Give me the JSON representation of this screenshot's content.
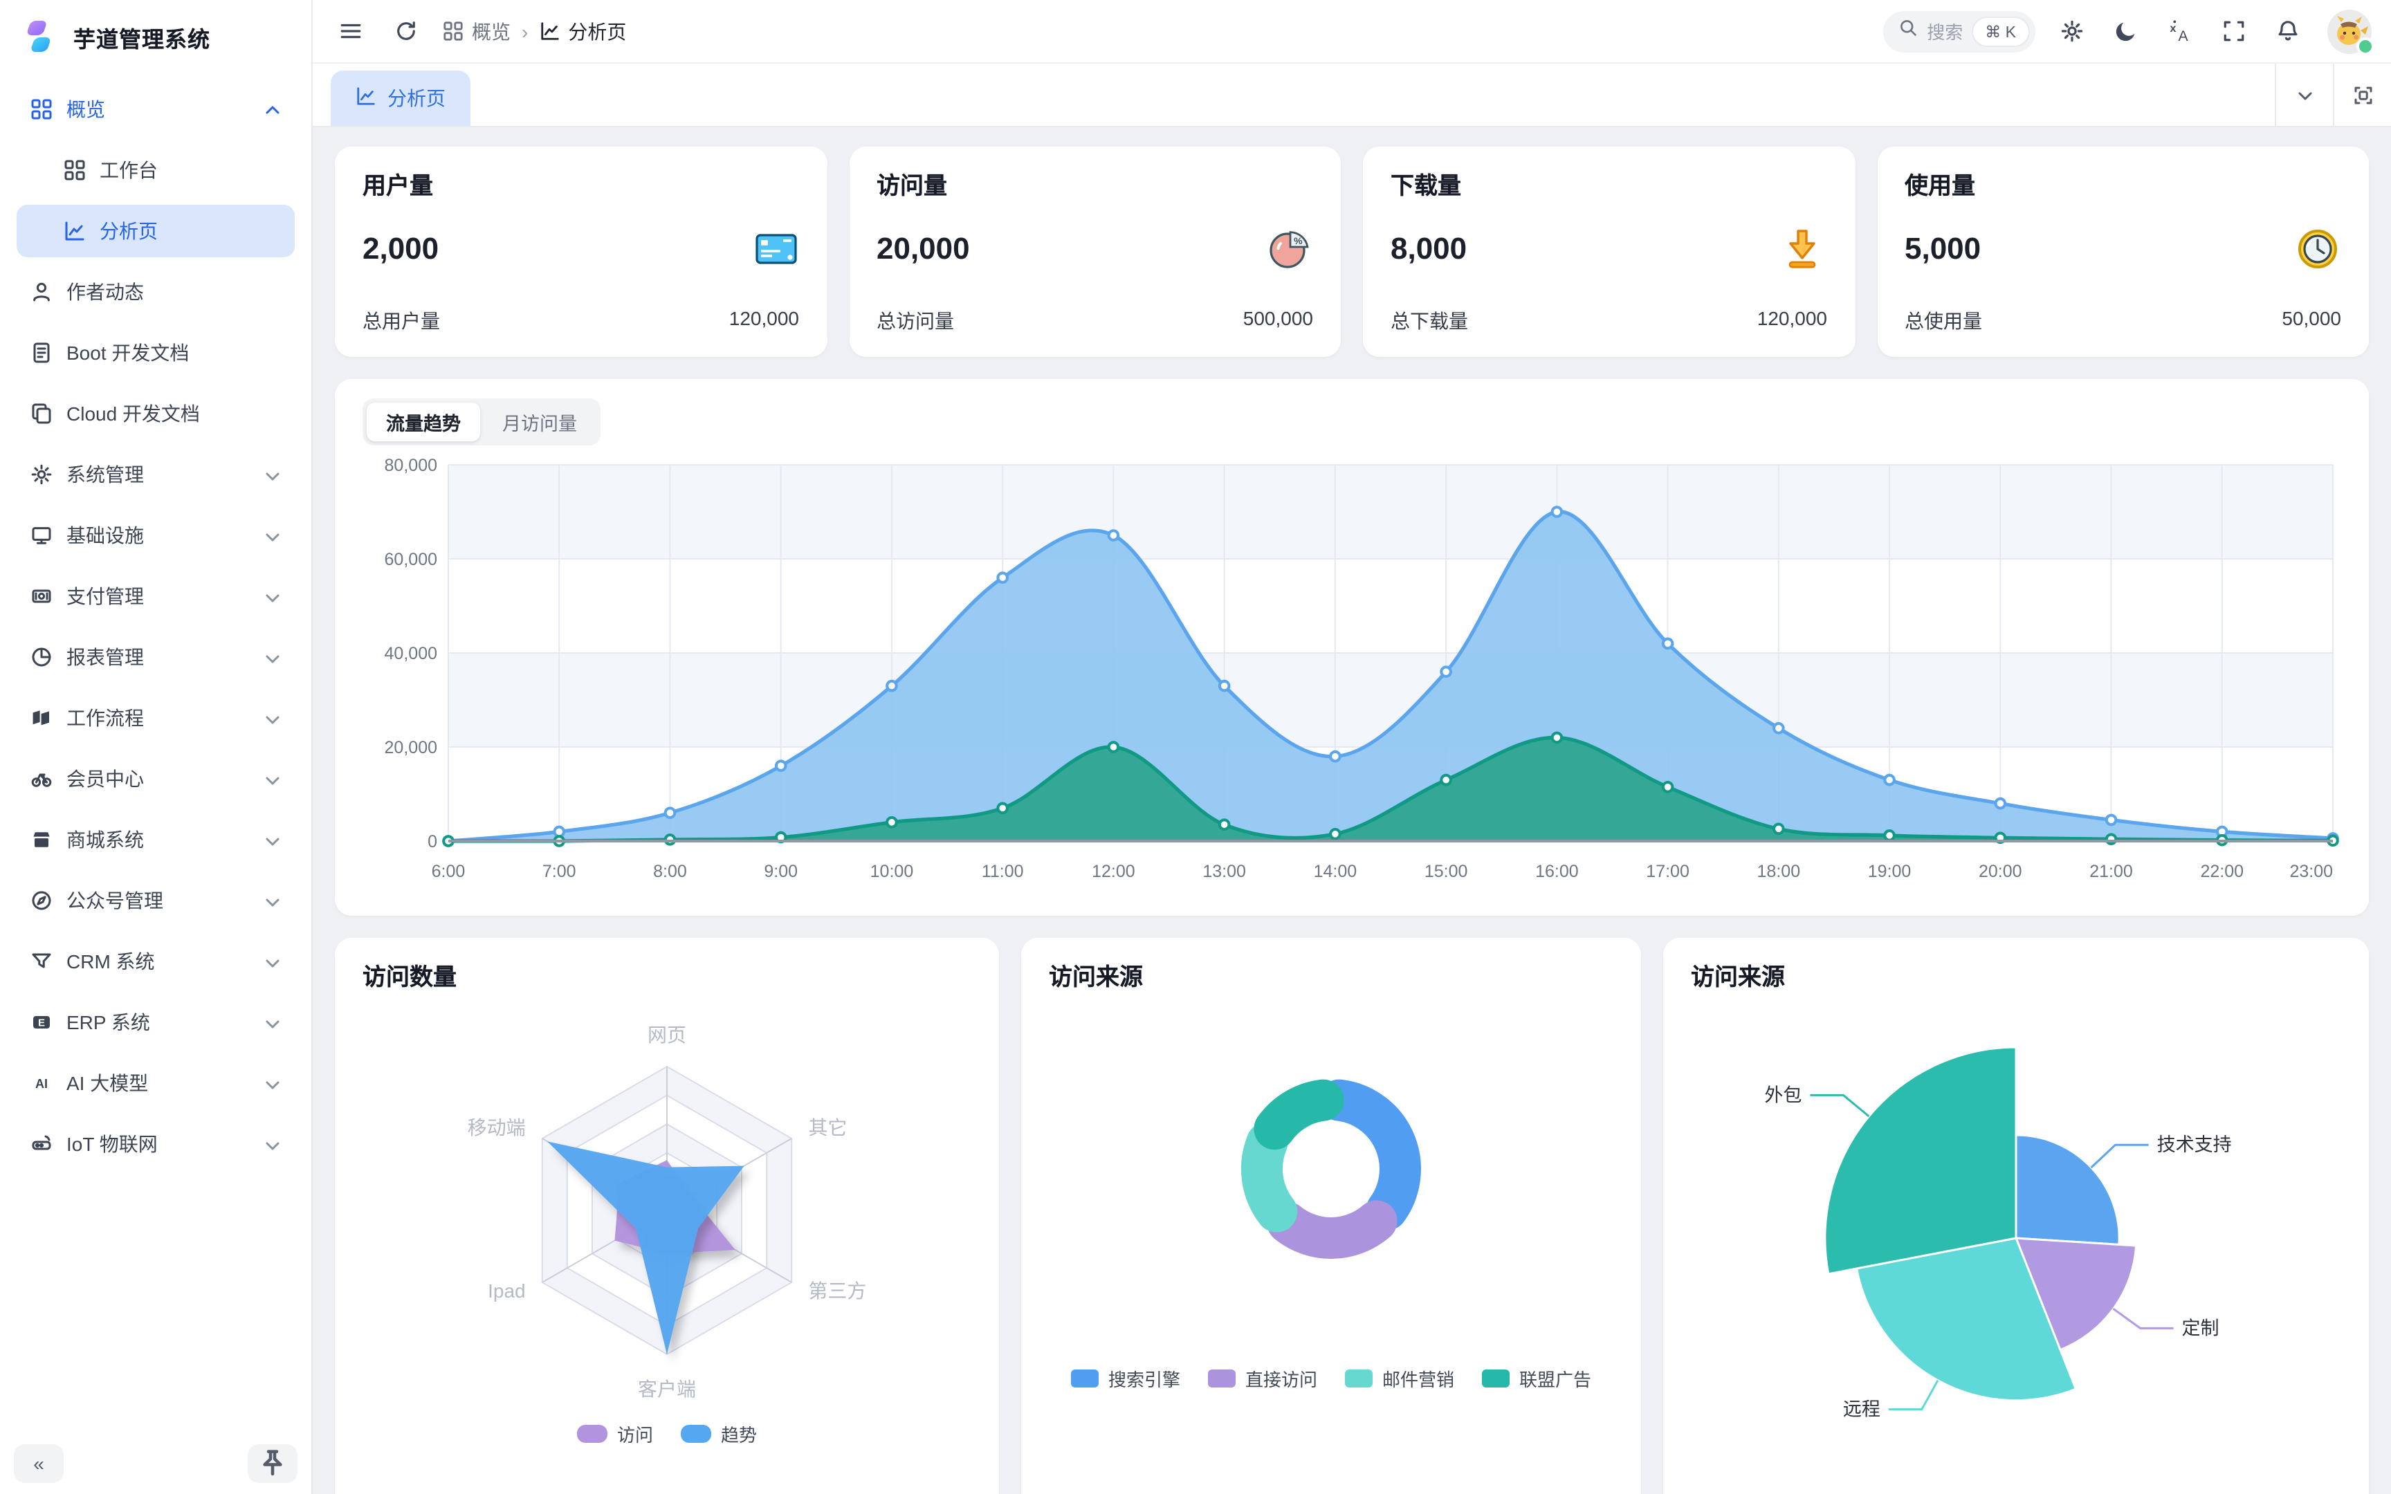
{
  "app": {
    "title": "芋道管理系统"
  },
  "sidebar": {
    "items": [
      {
        "id": "overview",
        "label": "概览",
        "icon": "grid-icon",
        "level": 0,
        "chevron": "up",
        "active_section": true
      },
      {
        "id": "workbench",
        "label": "工作台",
        "icon": "grid-icon",
        "level": 1
      },
      {
        "id": "analysis",
        "label": "分析页",
        "icon": "chart-icon",
        "level": 1,
        "selected": true
      },
      {
        "id": "author-news",
        "label": "作者动态",
        "icon": "user-icon",
        "level": 0
      },
      {
        "id": "boot-docs",
        "label": "Boot 开发文档",
        "icon": "doc-icon",
        "level": 0
      },
      {
        "id": "cloud-docs",
        "label": "Cloud 开发文档",
        "icon": "copy-icon",
        "level": 0
      },
      {
        "id": "system",
        "label": "系统管理",
        "icon": "gear-icon",
        "level": 0,
        "chevron": "down"
      },
      {
        "id": "infra",
        "label": "基础设施",
        "icon": "monitor-icon",
        "level": 0,
        "chevron": "down"
      },
      {
        "id": "payment",
        "label": "支付管理",
        "icon": "payment-icon",
        "level": 0,
        "chevron": "down"
      },
      {
        "id": "report",
        "label": "报表管理",
        "icon": "report-icon",
        "level": 0,
        "chevron": "down"
      },
      {
        "id": "workflow",
        "label": "工作流程",
        "icon": "workflow-icon",
        "level": 0,
        "chevron": "down"
      },
      {
        "id": "member",
        "label": "会员中心",
        "icon": "member-icon",
        "level": 0,
        "chevron": "down"
      },
      {
        "id": "mall",
        "label": "商城系统",
        "icon": "mall-icon",
        "level": 0,
        "chevron": "down"
      },
      {
        "id": "mp",
        "label": "公众号管理",
        "icon": "compass-icon",
        "level": 0,
        "chevron": "down"
      },
      {
        "id": "crm",
        "label": "CRM 系统",
        "icon": "crm-icon",
        "level": 0,
        "chevron": "down"
      },
      {
        "id": "erp",
        "label": "ERP 系统",
        "icon": "erp-icon",
        "level": 0,
        "chevron": "down"
      },
      {
        "id": "ai",
        "label": "AI 大模型",
        "icon": "ai-icon",
        "level": 0,
        "chevron": "down"
      },
      {
        "id": "iot",
        "label": "IoT 物联网",
        "icon": "iot-icon",
        "level": 0,
        "chevron": "down"
      }
    ],
    "collapse_label": "«"
  },
  "header": {
    "breadcrumb": [
      {
        "label": "概览",
        "icon": "grid-icon"
      },
      {
        "label": "分析页",
        "icon": "chart-icon"
      }
    ],
    "search": {
      "placeholder": "搜索",
      "shortcut": "⌘ K"
    }
  },
  "tabbar": {
    "active_tab": "分析页"
  },
  "stats": [
    {
      "id": "users",
      "title": "用户量",
      "value": "2,000",
      "icon": "credit-card-icon",
      "total_label": "总用户量",
      "total_value": "120,000"
    },
    {
      "id": "visits",
      "title": "访问量",
      "value": "20,000",
      "icon": "pie-percent-icon",
      "total_label": "总访问量",
      "total_value": "500,000"
    },
    {
      "id": "downloads",
      "title": "下载量",
      "value": "8,000",
      "icon": "download-icon",
      "total_label": "总下载量",
      "total_value": "120,000"
    },
    {
      "id": "usage",
      "title": "使用量",
      "value": "5,000",
      "icon": "clock-icon",
      "total_label": "总使用量",
      "total_value": "50,000"
    }
  ],
  "traffic": {
    "tabs": [
      "流量趋势",
      "月访问量"
    ],
    "active_tab": "流量趋势"
  },
  "cards": {
    "visit_count_title": "访问数量",
    "visit_source1_title": "访问来源",
    "visit_source2_title": "访问来源"
  },
  "chart_data": [
    {
      "id": "traffic-trend",
      "type": "area",
      "x": [
        "6:00",
        "7:00",
        "8:00",
        "9:00",
        "10:00",
        "11:00",
        "12:00",
        "13:00",
        "14:00",
        "15:00",
        "16:00",
        "17:00",
        "18:00",
        "19:00",
        "20:00",
        "21:00",
        "22:00",
        "23:00"
      ],
      "ylim": [
        0,
        80000
      ],
      "yticks": [
        {
          "value": 80000,
          "label": "80,000"
        },
        {
          "value": 60000,
          "label": "60,000"
        },
        {
          "value": 40000,
          "label": "40,000"
        },
        {
          "value": 20000,
          "label": "20,000"
        },
        {
          "value": 0,
          "label": "0"
        }
      ],
      "grid": true,
      "series": [
        {
          "name": "visits-blue",
          "color": "#5aa5ec",
          "fill": "#8fc5f2",
          "values": [
            0,
            2000,
            6000,
            16000,
            33000,
            56000,
            65000,
            33000,
            18000,
            36000,
            70000,
            42000,
            24000,
            13000,
            8000,
            4500,
            2000,
            600
          ]
        },
        {
          "name": "trend-green",
          "color": "#109a86",
          "fill": "#2ca48e",
          "values": [
            0,
            0,
            300,
            800,
            4000,
            7000,
            20000,
            3500,
            1500,
            13000,
            22000,
            11500,
            2600,
            1200,
            700,
            400,
            200,
            100
          ]
        }
      ]
    },
    {
      "id": "visit-radar",
      "type": "radar",
      "max": 100,
      "axes": [
        "网页",
        "其它",
        "第三方",
        "客户端",
        "Ipad",
        "移动端"
      ],
      "series": [
        {
          "name": "访问",
          "color": "#b293de",
          "values": [
            35,
            20,
            55,
            30,
            42,
            38
          ]
        },
        {
          "name": "趋势",
          "color": "#54a7f0",
          "values": [
            30,
            62,
            25,
            100,
            25,
            96
          ]
        }
      ],
      "legend_position": "bottom"
    },
    {
      "id": "source-donut",
      "type": "pie",
      "variant": "donut",
      "labels": [
        "搜索引擎",
        "直接访问",
        "邮件营销",
        "联盟广告"
      ],
      "values": [
        1048,
        735,
        580,
        484
      ],
      "colors": [
        "#509df2",
        "#ab93dd",
        "#66d8d0",
        "#26b8a8"
      ],
      "legend_position": "bottom"
    },
    {
      "id": "source-rose",
      "type": "pie",
      "variant": "rose",
      "labels": [
        "技术支持",
        "定制",
        "远程",
        "外包"
      ],
      "values": [
        26,
        18,
        28,
        28
      ],
      "radius": [
        0.54,
        0.63,
        0.85,
        1.0
      ],
      "colors": [
        "#5ba4f0",
        "#b29ae2",
        "#5fd8d8",
        "#2cbcae"
      ]
    }
  ]
}
